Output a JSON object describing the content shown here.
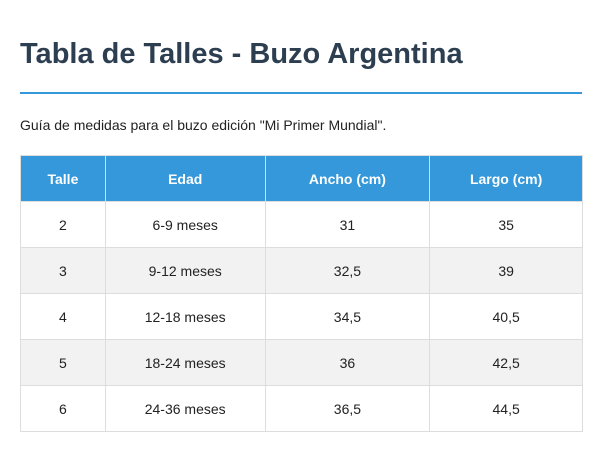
{
  "header": {
    "title": "Tabla de Talles - Buzo Argentina"
  },
  "description": "Guía de medidas para el buzo edición \"Mi Primer Mundial\".",
  "table": {
    "columns": [
      "Talle",
      "Edad",
      "Ancho (cm)",
      "Largo (cm)"
    ],
    "rows": [
      [
        "2",
        "6-9 meses",
        "31",
        "35"
      ],
      [
        "3",
        "9-12 meses",
        "32,5",
        "39"
      ],
      [
        "4",
        "12-18 meses",
        "34,5",
        "40,5"
      ],
      [
        "5",
        "18-24 meses",
        "36",
        "42,5"
      ],
      [
        "6",
        "24-36 meses",
        "36,5",
        "44,5"
      ]
    ]
  }
}
